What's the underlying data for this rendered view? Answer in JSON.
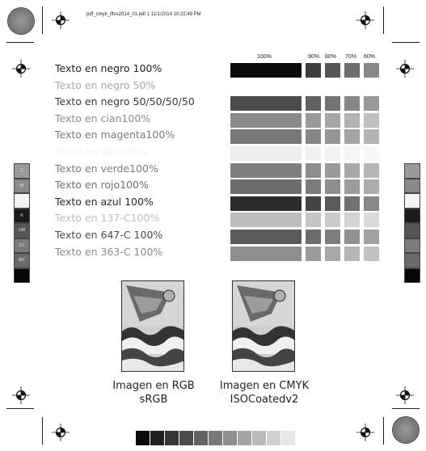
{
  "header": {
    "text": "pdf_cmyk_iftxs2014_01.pdf   1   11/1/2014   10:22:49 PM"
  },
  "percent_labels": {
    "p100": "100%",
    "p90": "90%",
    "p80": "80%",
    "p70": "70%",
    "p60": "60%"
  },
  "rows": [
    {
      "label": "Texto en negro 100%",
      "color": "#1e1e1e",
      "bar": "#0a0a0a",
      "tints": [
        "#3c3c3c",
        "#555555",
        "#6d6d6d",
        "#878787"
      ]
    },
    {
      "label": "Texto en negro 50%",
      "color": "#a9a9a9",
      "bar": "#ffffff",
      "tints": [
        "#ffffff",
        "#ffffff",
        "#ffffff",
        "#ffffff"
      ]
    },
    {
      "label": "Texto en negro 50/50/50/50",
      "color": "#3a3a3a",
      "bar": "#4b4b4b",
      "tints": [
        "#5f5f5f",
        "#737373",
        "#868686",
        "#999999"
      ]
    },
    {
      "label": "Texto en cian100%",
      "color": "#8c8c8c",
      "bar": "#8a8a8a",
      "tints": [
        "#999999",
        "#a6a6a6",
        "#b3b3b3",
        "#c0c0c0"
      ]
    },
    {
      "label": "Texto en magenta100%",
      "color": "#7a7a7a",
      "bar": "#777777",
      "tints": [
        "#868686",
        "#959595",
        "#a4a4a4",
        "#b3b3b3"
      ]
    },
    {
      "label": "Texto en allo100%",
      "color": "#f0f0f0",
      "bar": "#eeeeee",
      "tints": [
        "#f1f1f1",
        "#f3f3f3",
        "#f5f5f5",
        "#f7f7f7"
      ]
    },
    {
      "label": "Texto en verde100%",
      "color": "#7a7a7a",
      "bar": "#7e7e7e",
      "tints": [
        "#8c8c8c",
        "#9a9a9a",
        "#a8a8a8",
        "#b6b6b6"
      ]
    },
    {
      "label": "Texto en rojo100%",
      "color": "#6e6e6e",
      "bar": "#6c6c6c",
      "tints": [
        "#7c7c7c",
        "#8c8c8c",
        "#9c9c9c",
        "#acacac"
      ]
    },
    {
      "label": "Texto en azul 100%",
      "color": "#2a2a2a",
      "bar": "#2c2c2c",
      "tints": [
        "#434343",
        "#5a5a5a",
        "#717171",
        "#888888"
      ]
    },
    {
      "label": "Texto en 137-C100%",
      "color": "#bdbdbd",
      "bar": "#bcbcbc",
      "tints": [
        "#c4c4c4",
        "#cbcbcb",
        "#d3d3d3",
        "#dadada"
      ]
    },
    {
      "label": "Texto en 647-C 100%",
      "color": "#4c4c4c",
      "bar": "#5b5b5b",
      "tints": [
        "#6d6d6d",
        "#7e7e7e",
        "#909090",
        "#a1a1a1"
      ]
    },
    {
      "label": "Texto en 363-C 100%",
      "color": "#8a8a8a",
      "bar": "#8e8e8e",
      "tints": [
        "#9b9b9b",
        "#a8a8a8",
        "#b5b5b5",
        "#c2c2c2"
      ]
    }
  ],
  "left_strip": [
    {
      "color": "#9a9a9a",
      "mark": "C"
    },
    {
      "color": "#8a8a8a",
      "mark": "M"
    },
    {
      "color": "#f4f4f4",
      "mark": "Y"
    },
    {
      "color": "#1a1a1a",
      "mark": "K"
    },
    {
      "color": "#555555",
      "mark": "CM"
    },
    {
      "color": "#7a7a7a",
      "mark": "CY"
    },
    {
      "color": "#6a6a6a",
      "mark": "MY"
    },
    {
      "color": "#050505",
      "mark": ""
    }
  ],
  "right_strip": [
    {
      "color": "#9a9a9a"
    },
    {
      "color": "#8a8a8a"
    },
    {
      "color": "#f4f4f4"
    },
    {
      "color": "#1a1a1a"
    },
    {
      "color": "#555555"
    },
    {
      "color": "#7a7a7a"
    },
    {
      "color": "#6a6a6a"
    },
    {
      "color": "#050505"
    }
  ],
  "bottom_strip": [
    "#0a0a0a",
    "#202020",
    "#363636",
    "#4c4c4c",
    "#626262",
    "#787878",
    "#8e8e8e",
    "#a4a4a4",
    "#bababa",
    "#d0d0d0",
    "#e6e6e6"
  ],
  "images": {
    "rgb": {
      "line1": "Imagen en RGB",
      "line2": "sRGB"
    },
    "cmyk": {
      "line1": "Imagen en CMYK",
      "line2": "ISOCoatedv2"
    }
  }
}
